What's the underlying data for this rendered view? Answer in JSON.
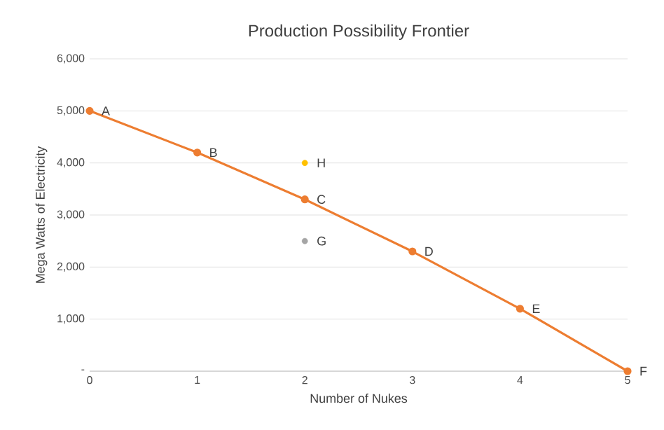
{
  "chart_data": {
    "type": "line",
    "title": "Production Possibility Frontier",
    "xlabel": "Number  of Nukes",
    "ylabel": "Mega Watts of Electricity",
    "x": [
      0,
      1,
      2,
      3,
      4,
      5
    ],
    "series": [
      {
        "color": "#ed7d31",
        "values": [
          5000,
          4200,
          3300,
          2300,
          1200,
          0
        ]
      },
      {
        "type": "scatter",
        "color": "#ffc000",
        "x": [
          2
        ],
        "values": [
          4000
        ]
      },
      {
        "type": "scatter",
        "color": "#a5a5a5",
        "x": [
          2
        ],
        "values": [
          2500
        ]
      }
    ],
    "xlim": [
      0,
      5
    ],
    "xticks": [
      0,
      1,
      2,
      3,
      4,
      5
    ],
    "ylim": [
      0,
      6000
    ],
    "yticks": [
      {
        "value": 0,
        "label": "-"
      },
      {
        "value": 1000,
        "label": "1,000"
      },
      {
        "value": 2000,
        "label": "2,000"
      },
      {
        "value": 3000,
        "label": "3,000"
      },
      {
        "value": 4000,
        "label": "4,000"
      },
      {
        "value": 5000,
        "label": "5,000"
      },
      {
        "value": 6000,
        "label": "6,000"
      }
    ],
    "grid": "y",
    "marker": "circle",
    "line_style": "solid",
    "annotations": [
      {
        "text": "A",
        "x": 0,
        "y": 5000
      },
      {
        "text": "B",
        "x": 1,
        "y": 4200
      },
      {
        "text": "C",
        "x": 2,
        "y": 3300
      },
      {
        "text": "D",
        "x": 3,
        "y": 2300
      },
      {
        "text": "E",
        "x": 4,
        "y": 1200
      },
      {
        "text": "F",
        "x": 5,
        "y": 0
      },
      {
        "text": "H",
        "x": 2,
        "y": 4000
      },
      {
        "text": "G",
        "x": 2,
        "y": 2500
      }
    ]
  }
}
